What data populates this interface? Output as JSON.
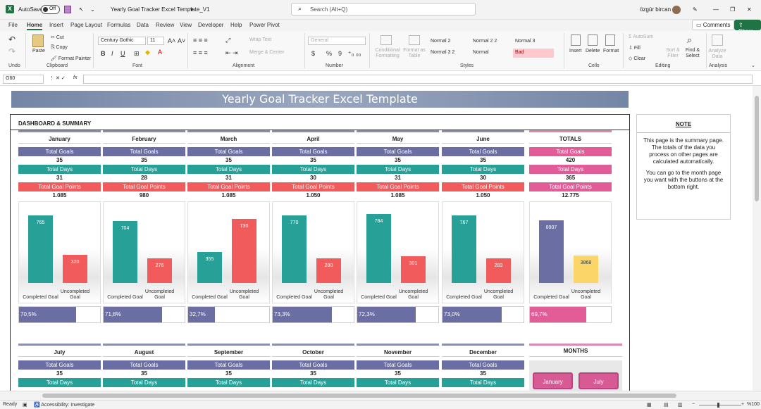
{
  "titlebar": {
    "autosave_label": "AutoSave",
    "autosave_state": "Off",
    "filename": "Yearly Goal Tracker Excel Template_V1",
    "search_placeholder": "Search (Alt+Q)",
    "user": "özgür bircan"
  },
  "menu": {
    "items": [
      "File",
      "Home",
      "Insert",
      "Page Layout",
      "Formulas",
      "Data",
      "Review",
      "View",
      "Developer",
      "Help",
      "Power Pivot"
    ],
    "active": "Home",
    "comments": "Comments",
    "share": "Share"
  },
  "ribbon": {
    "undo": "Undo",
    "clipboard": {
      "label": "Clipboard",
      "paste": "Paste",
      "cut": "Cut",
      "copy": "Copy",
      "format_painter": "Format Painter"
    },
    "font": {
      "label": "Font",
      "name": "Century Gothic",
      "size": "11",
      "bold": "B",
      "italic": "I",
      "underline": "U"
    },
    "alignment": {
      "label": "Alignment",
      "wrap": "Wrap Text",
      "merge": "Merge & Center"
    },
    "number": {
      "label": "Number",
      "format": "General",
      "pct": "%",
      "comma": "9"
    },
    "styles": {
      "label": "Styles",
      "cond": "Conditional Formatting",
      "format_table": "Format as Table",
      "s1": "Normal 2",
      "s2": "Normal 2 2",
      "s3": "Normal 3",
      "s4": "Normal 3 2",
      "s5": "Normal",
      "s6": "Bad"
    },
    "cells": {
      "label": "Cells",
      "insert": "Insert",
      "delete": "Delete",
      "format": "Format"
    },
    "editing": {
      "label": "Editing",
      "autosum": "AutoSum",
      "fill": "Fill",
      "clear": "Clear",
      "sort": "Sort & Filter",
      "find": "Find & Select"
    },
    "analysis": {
      "label": "Analysis",
      "analyze": "Analyze Data"
    }
  },
  "formula_bar": {
    "cell_ref": "G60",
    "fx": "fx",
    "content": ""
  },
  "sheet": {
    "banner": "Yearly Goal Tracker Excel Template",
    "dashboard_title": "DASHBOARD & SUMMARY",
    "row_labels": {
      "total_goals": "Total Goals",
      "total_days": "Total Days",
      "total_points": "Total Goal Points"
    },
    "chart_labels": {
      "completed": "Completed Goal",
      "uncompleted": "Uncompleted Goal"
    },
    "months": [
      {
        "name": "January",
        "goals": "35",
        "days": "31",
        "points": "1.085",
        "completed": 765,
        "uncompleted": 320,
        "pct": "70,5%",
        "frac": 0.705
      },
      {
        "name": "February",
        "goals": "35",
        "days": "28",
        "points": "980",
        "completed": 704,
        "uncompleted": 276,
        "pct": "71,8%",
        "frac": 0.718
      },
      {
        "name": "March",
        "goals": "35",
        "days": "31",
        "points": "1.085",
        "completed": 355,
        "uncompleted": 730,
        "pct": "32,7%",
        "frac": 0.327
      },
      {
        "name": "April",
        "goals": "35",
        "days": "30",
        "points": "1.050",
        "completed": 770,
        "uncompleted": 280,
        "pct": "73,3%",
        "frac": 0.733
      },
      {
        "name": "May",
        "goals": "35",
        "days": "31",
        "points": "1.085",
        "completed": 784,
        "uncompleted": 301,
        "pct": "72,3%",
        "frac": 0.723
      },
      {
        "name": "June",
        "goals": "35",
        "days": "30",
        "points": "1.050",
        "completed": 767,
        "uncompleted": 283,
        "pct": "73,0%",
        "frac": 0.73
      }
    ],
    "totals": {
      "name": "TOTALS",
      "goals": "420",
      "days": "365",
      "points": "12.775",
      "completed": 8907,
      "uncompleted": 3868,
      "pct": "69,7%",
      "frac": 0.697
    },
    "months2": [
      "July",
      "August",
      "September",
      "October",
      "November",
      "December"
    ],
    "months_panel": {
      "title": "MONTHS",
      "btn1": "January",
      "btn2": "July"
    },
    "note": {
      "title": "NOTE",
      "p1": "This page is the summary page. The totals of the data you process on other pages are calculated automatically.",
      "p2": "You can go to the month page you want with the buttons at the bottom right."
    }
  },
  "status": {
    "ready": "Ready",
    "accessibility": "Accessibility: Investigate",
    "zoom": "%100"
  },
  "colors": {
    "purple": "#6b6ea3",
    "teal": "#27a097",
    "red": "#f25b5b",
    "pink": "#e25c98",
    "yellow": "#fcd569"
  }
}
